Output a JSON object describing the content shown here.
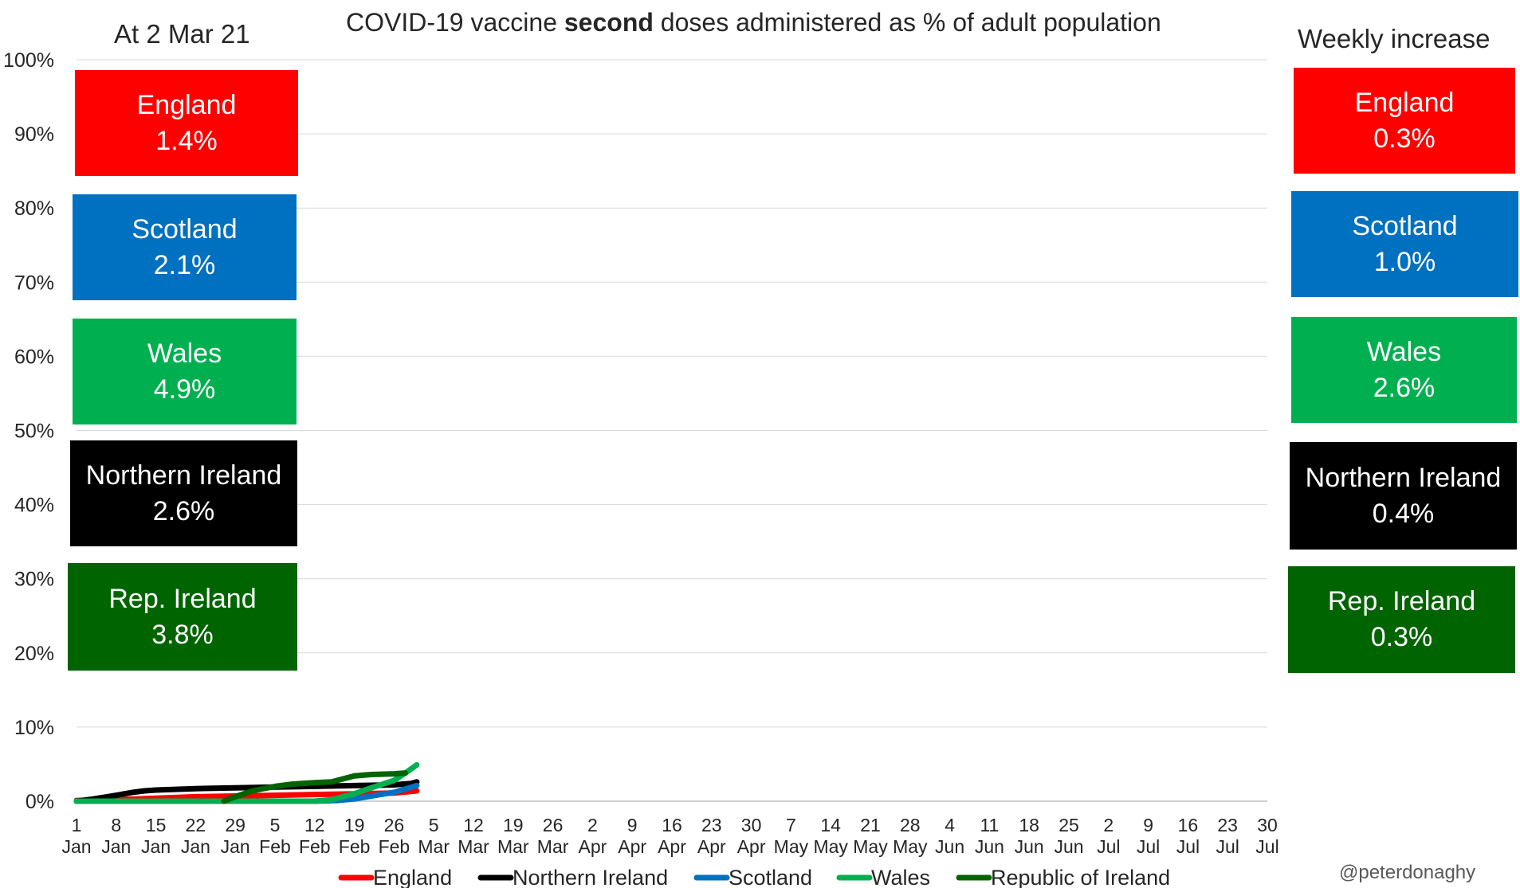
{
  "title_parts": {
    "before": "COVID-19 vaccine ",
    "bold": "second",
    "after": " doses administered as % of adult population"
  },
  "left_heading": "At  2 Mar 21",
  "right_heading": "Weekly increase",
  "credit": "@peterdonaghy",
  "colors": {
    "England": "#ff0000",
    "Northern Ireland": "#000000",
    "Scotland": "#0070c0",
    "Wales": "#00b050",
    "Republic of Ireland": "#006400"
  },
  "left_panels": [
    {
      "name": "England",
      "value": "1.4%",
      "color": "#ff0000"
    },
    {
      "name": "Scotland",
      "value": "2.1%",
      "color": "#0070c0"
    },
    {
      "name": "Wales",
      "value": "4.9%",
      "color": "#00b050"
    },
    {
      "name": "Northern Ireland",
      "value": "2.6%",
      "color": "#000000"
    },
    {
      "name": "Rep. Ireland",
      "value": "3.8%",
      "color": "#006400"
    }
  ],
  "right_panels": [
    {
      "name": "England",
      "value": "0.3%",
      "color": "#ff0000"
    },
    {
      "name": "Scotland",
      "value": "1.0%",
      "color": "#0070c0"
    },
    {
      "name": "Wales",
      "value": "2.6%",
      "color": "#00b050"
    },
    {
      "name": "Northern Ireland",
      "value": "0.4%",
      "color": "#000000"
    },
    {
      "name": "Rep. Ireland",
      "value": "0.3%",
      "color": "#006400"
    }
  ],
  "chart_data": {
    "type": "line",
    "title": "COVID-19 vaccine second doses administered as % of adult population",
    "xlabel": "",
    "ylabel": "",
    "xlim": [
      0,
      210
    ],
    "ylim": [
      0,
      100
    ],
    "y_ticks": [
      "0%",
      "10%",
      "20%",
      "30%",
      "40%",
      "50%",
      "60%",
      "70%",
      "80%",
      "90%",
      "100%"
    ],
    "x_ticks": [
      {
        "day": 0,
        "num": "1",
        "mon": "Jan"
      },
      {
        "day": 7,
        "num": "8",
        "mon": "Jan"
      },
      {
        "day": 14,
        "num": "15",
        "mon": "Jan"
      },
      {
        "day": 21,
        "num": "22",
        "mon": "Jan"
      },
      {
        "day": 28,
        "num": "29",
        "mon": "Jan"
      },
      {
        "day": 35,
        "num": "5",
        "mon": "Feb"
      },
      {
        "day": 42,
        "num": "12",
        "mon": "Feb"
      },
      {
        "day": 49,
        "num": "19",
        "mon": "Feb"
      },
      {
        "day": 56,
        "num": "26",
        "mon": "Feb"
      },
      {
        "day": 63,
        "num": "5",
        "mon": "Mar"
      },
      {
        "day": 70,
        "num": "12",
        "mon": "Mar"
      },
      {
        "day": 77,
        "num": "19",
        "mon": "Mar"
      },
      {
        "day": 84,
        "num": "26",
        "mon": "Mar"
      },
      {
        "day": 91,
        "num": "2",
        "mon": "Apr"
      },
      {
        "day": 98,
        "num": "9",
        "mon": "Apr"
      },
      {
        "day": 105,
        "num": "16",
        "mon": "Apr"
      },
      {
        "day": 112,
        "num": "23",
        "mon": "Apr"
      },
      {
        "day": 119,
        "num": "30",
        "mon": "Apr"
      },
      {
        "day": 126,
        "num": "7",
        "mon": "May"
      },
      {
        "day": 133,
        "num": "14",
        "mon": "May"
      },
      {
        "day": 140,
        "num": "21",
        "mon": "May"
      },
      {
        "day": 147,
        "num": "28",
        "mon": "May"
      },
      {
        "day": 154,
        "num": "4",
        "mon": "Jun"
      },
      {
        "day": 161,
        "num": "11",
        "mon": "Jun"
      },
      {
        "day": 168,
        "num": "18",
        "mon": "Jun"
      },
      {
        "day": 175,
        "num": "25",
        "mon": "Jun"
      },
      {
        "day": 182,
        "num": "2",
        "mon": "Jul"
      },
      {
        "day": 189,
        "num": "9",
        "mon": "Jul"
      },
      {
        "day": 196,
        "num": "16",
        "mon": "Jul"
      },
      {
        "day": 203,
        "num": "23",
        "mon": "Jul"
      },
      {
        "day": 210,
        "num": "30",
        "mon": "Jul"
      }
    ],
    "legend": [
      "England",
      "Northern Ireland",
      "Scotland",
      "Wales",
      "Republic of Ireland"
    ],
    "legend_position": "bottom",
    "grid": true,
    "series": [
      {
        "name": "England",
        "color": "#ff0000",
        "x": [
          0,
          7,
          14,
          21,
          28,
          35,
          42,
          49,
          56,
          60
        ],
        "y": [
          0.1,
          0.2,
          0.4,
          0.6,
          0.7,
          0.8,
          0.9,
          1.0,
          1.1,
          1.4
        ]
      },
      {
        "name": "Northern Ireland",
        "color": "#000000",
        "x": [
          0,
          3,
          7,
          10,
          12,
          14,
          21,
          28,
          35,
          42,
          49,
          56,
          59,
          60
        ],
        "y": [
          0.0,
          0.3,
          0.8,
          1.2,
          1.4,
          1.5,
          1.7,
          1.8,
          1.9,
          2.0,
          2.1,
          2.2,
          2.4,
          2.6
        ]
      },
      {
        "name": "Scotland",
        "color": "#0070c0",
        "x": [
          0,
          7,
          14,
          21,
          28,
          35,
          42,
          46,
          49,
          52,
          56,
          60
        ],
        "y": [
          0.0,
          0.0,
          0.0,
          0.0,
          0.0,
          0.0,
          0.0,
          0.1,
          0.3,
          0.7,
          1.2,
          2.1
        ]
      },
      {
        "name": "Wales",
        "color": "#00b050",
        "x": [
          0,
          7,
          14,
          21,
          28,
          35,
          42,
          45,
          49,
          52,
          56,
          58,
          60
        ],
        "y": [
          0.0,
          0.0,
          0.0,
          0.0,
          0.0,
          0.0,
          0.0,
          0.2,
          1.0,
          1.8,
          2.8,
          3.8,
          4.9
        ]
      },
      {
        "name": "Republic of Ireland",
        "color": "#006400",
        "x": [
          26,
          28,
          31,
          35,
          38,
          42,
          45,
          49,
          52,
          56,
          58
        ],
        "y": [
          0.0,
          0.6,
          1.4,
          2.0,
          2.3,
          2.5,
          2.6,
          3.4,
          3.6,
          3.7,
          3.8
        ]
      }
    ]
  }
}
